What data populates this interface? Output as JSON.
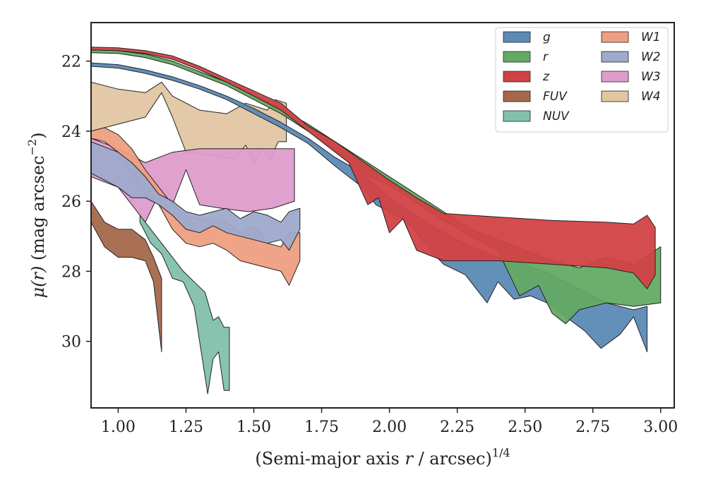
{
  "chart_data": {
    "type": "area",
    "xlabel_main": "(Semi-major axis ",
    "xlabel_var": "r",
    "xlabel_unit": " / arcsec)",
    "xlabel_exp": "1/4",
    "ylabel_main": "(mag arcsec",
    "ylabel_var": "μ(r)",
    "ylabel_exp": "−2",
    "xlim": [
      0.9,
      3.05
    ],
    "ylim": [
      31.9,
      20.9
    ],
    "y_inverted": true,
    "xticks": [
      "1.00",
      "1.25",
      "1.50",
      "1.75",
      "2.00",
      "2.25",
      "2.50",
      "2.75",
      "3.00"
    ],
    "xtick_values": [
      1.0,
      1.25,
      1.5,
      1.75,
      2.0,
      2.25,
      2.5,
      2.75,
      3.0
    ],
    "yticks": [
      "22",
      "24",
      "26",
      "28",
      "30"
    ],
    "ytick_values": [
      22,
      24,
      26,
      28,
      30
    ],
    "grid": false,
    "legend_position": "top-right",
    "series": [
      {
        "name": "W4",
        "color": "#e2c6a2",
        "upper": [
          [
            0.9,
            22.6
          ],
          [
            1.0,
            22.8
          ],
          [
            1.1,
            22.9
          ],
          [
            1.16,
            22.6
          ],
          [
            1.2,
            23.0
          ],
          [
            1.3,
            23.4
          ],
          [
            1.4,
            23.5
          ],
          [
            1.47,
            23.2
          ],
          [
            1.55,
            23.4
          ],
          [
            1.58,
            23.1
          ],
          [
            1.62,
            23.2
          ]
        ],
        "lower": [
          [
            0.9,
            24.0
          ],
          [
            1.0,
            23.8
          ],
          [
            1.1,
            23.6
          ],
          [
            1.16,
            22.9
          ],
          [
            1.2,
            23.6
          ],
          [
            1.25,
            24.6
          ],
          [
            1.35,
            24.7
          ],
          [
            1.43,
            24.8
          ],
          [
            1.47,
            24.4
          ],
          [
            1.5,
            24.9
          ],
          [
            1.53,
            24.5
          ],
          [
            1.56,
            24.8
          ],
          [
            1.59,
            24.3
          ],
          [
            1.62,
            24.3
          ]
        ]
      },
      {
        "name": "W3",
        "color": "#de9ccc",
        "upper": [
          [
            0.9,
            24.2
          ],
          [
            1.0,
            24.5
          ],
          [
            1.1,
            24.9
          ],
          [
            1.2,
            24.6
          ],
          [
            1.3,
            24.5
          ],
          [
            1.4,
            24.5
          ],
          [
            1.5,
            24.5
          ],
          [
            1.6,
            24.5
          ],
          [
            1.65,
            24.5
          ]
        ],
        "lower": [
          [
            0.9,
            25.3
          ],
          [
            1.0,
            25.6
          ],
          [
            1.05,
            26.1
          ],
          [
            1.1,
            26.6
          ],
          [
            1.15,
            25.8
          ],
          [
            1.2,
            26.1
          ],
          [
            1.25,
            25.1
          ],
          [
            1.3,
            26.1
          ],
          [
            1.38,
            26.2
          ],
          [
            1.48,
            26.3
          ],
          [
            1.57,
            26.2
          ],
          [
            1.65,
            26.0
          ]
        ]
      },
      {
        "name": "W1",
        "color": "#ee9f82",
        "upper": [
          [
            0.9,
            24.0
          ],
          [
            0.95,
            23.9
          ],
          [
            1.0,
            24.1
          ],
          [
            1.05,
            24.5
          ],
          [
            1.1,
            25.1
          ],
          [
            1.15,
            25.6
          ],
          [
            1.2,
            26.1
          ],
          [
            1.25,
            26.4
          ],
          [
            1.3,
            26.5
          ],
          [
            1.35,
            26.6
          ],
          [
            1.4,
            26.6
          ],
          [
            1.45,
            26.9
          ],
          [
            1.5,
            26.7
          ],
          [
            1.55,
            27.2
          ],
          [
            1.6,
            27.3
          ],
          [
            1.63,
            26.9
          ],
          [
            1.67,
            26.9
          ]
        ],
        "lower": [
          [
            0.9,
            24.2
          ],
          [
            0.95,
            24.3
          ],
          [
            1.0,
            24.6
          ],
          [
            1.05,
            25.2
          ],
          [
            1.1,
            25.8
          ],
          [
            1.15,
            26.1
          ],
          [
            1.2,
            26.8
          ],
          [
            1.25,
            27.2
          ],
          [
            1.3,
            27.3
          ],
          [
            1.35,
            27.2
          ],
          [
            1.4,
            27.4
          ],
          [
            1.45,
            27.7
          ],
          [
            1.5,
            27.8
          ],
          [
            1.55,
            27.9
          ],
          [
            1.6,
            28.0
          ],
          [
            1.63,
            28.4
          ],
          [
            1.67,
            27.7
          ]
        ]
      },
      {
        "name": "W2",
        "color": "#9eaacc",
        "upper": [
          [
            0.9,
            24.3
          ],
          [
            1.0,
            24.6
          ],
          [
            1.05,
            24.9
          ],
          [
            1.1,
            25.3
          ],
          [
            1.15,
            25.8
          ],
          [
            1.2,
            26.0
          ],
          [
            1.25,
            26.3
          ],
          [
            1.3,
            26.4
          ],
          [
            1.35,
            26.3
          ],
          [
            1.4,
            26.2
          ],
          [
            1.45,
            26.5
          ],
          [
            1.5,
            26.3
          ],
          [
            1.55,
            26.4
          ],
          [
            1.6,
            26.6
          ],
          [
            1.63,
            26.3
          ],
          [
            1.67,
            26.2
          ]
        ],
        "lower": [
          [
            0.9,
            25.2
          ],
          [
            1.0,
            25.6
          ],
          [
            1.05,
            25.9
          ],
          [
            1.1,
            25.9
          ],
          [
            1.15,
            26.1
          ],
          [
            1.2,
            26.4
          ],
          [
            1.25,
            26.8
          ],
          [
            1.3,
            26.9
          ],
          [
            1.35,
            26.7
          ],
          [
            1.4,
            26.9
          ],
          [
            1.45,
            27.0
          ],
          [
            1.5,
            27.1
          ],
          [
            1.55,
            27.2
          ],
          [
            1.6,
            27.1
          ],
          [
            1.63,
            27.4
          ],
          [
            1.67,
            26.8
          ]
        ]
      },
      {
        "name": "FUV",
        "color": "#a5684a",
        "upper": [
          [
            0.9,
            26.0
          ],
          [
            0.95,
            26.6
          ],
          [
            1.0,
            26.8
          ],
          [
            1.05,
            26.8
          ],
          [
            1.1,
            27.1
          ],
          [
            1.13,
            27.6
          ],
          [
            1.16,
            28.2
          ]
        ],
        "lower": [
          [
            0.9,
            26.6
          ],
          [
            0.95,
            27.3
          ],
          [
            1.0,
            27.6
          ],
          [
            1.05,
            27.6
          ],
          [
            1.1,
            27.7
          ],
          [
            1.13,
            28.3
          ],
          [
            1.16,
            30.3
          ]
        ]
      },
      {
        "name": "NUV",
        "color": "#82c0ac",
        "upper": [
          [
            1.08,
            26.4
          ],
          [
            1.12,
            26.8
          ],
          [
            1.16,
            27.2
          ],
          [
            1.2,
            27.6
          ],
          [
            1.24,
            28.0
          ],
          [
            1.28,
            28.3
          ],
          [
            1.32,
            28.6
          ],
          [
            1.35,
            29.4
          ],
          [
            1.37,
            29.3
          ],
          [
            1.39,
            29.6
          ],
          [
            1.41,
            29.6
          ]
        ],
        "lower": [
          [
            1.08,
            26.6
          ],
          [
            1.12,
            27.2
          ],
          [
            1.16,
            27.5
          ],
          [
            1.2,
            28.2
          ],
          [
            1.24,
            28.3
          ],
          [
            1.28,
            29.0
          ],
          [
            1.3,
            30.0
          ],
          [
            1.33,
            31.5
          ],
          [
            1.35,
            30.5
          ],
          [
            1.37,
            30.3
          ],
          [
            1.39,
            31.4
          ],
          [
            1.41,
            31.4
          ]
        ]
      },
      {
        "name": "g",
        "color": "#5b8ab5",
        "upper": [
          [
            0.9,
            22.05
          ],
          [
            1.0,
            22.1
          ],
          [
            1.1,
            22.25
          ],
          [
            1.2,
            22.45
          ],
          [
            1.3,
            22.7
          ],
          [
            1.4,
            23.0
          ],
          [
            1.5,
            23.35
          ],
          [
            1.6,
            23.75
          ],
          [
            1.7,
            24.2
          ],
          [
            1.8,
            24.75
          ],
          [
            1.9,
            25.2
          ],
          [
            2.0,
            25.9
          ],
          [
            2.1,
            26.4
          ],
          [
            2.2,
            26.9
          ],
          [
            2.3,
            27.3
          ],
          [
            2.4,
            27.6
          ],
          [
            2.5,
            27.8
          ],
          [
            2.6,
            28.1
          ],
          [
            2.7,
            28.5
          ],
          [
            2.8,
            28.9
          ],
          [
            2.9,
            29.1
          ],
          [
            2.95,
            29.0
          ]
        ],
        "lower": [
          [
            0.9,
            22.15
          ],
          [
            1.0,
            22.2
          ],
          [
            1.1,
            22.35
          ],
          [
            1.2,
            22.55
          ],
          [
            1.3,
            22.8
          ],
          [
            1.4,
            23.1
          ],
          [
            1.5,
            23.5
          ],
          [
            1.6,
            23.9
          ],
          [
            1.7,
            24.35
          ],
          [
            1.8,
            25.0
          ],
          [
            1.9,
            25.6
          ],
          [
            1.95,
            26.1
          ],
          [
            2.0,
            26.3
          ],
          [
            2.05,
            26.5
          ],
          [
            2.1,
            26.9
          ],
          [
            2.15,
            27.4
          ],
          [
            2.2,
            27.8
          ],
          [
            2.28,
            28.1
          ],
          [
            2.36,
            28.9
          ],
          [
            2.4,
            28.3
          ],
          [
            2.46,
            28.8
          ],
          [
            2.52,
            28.7
          ],
          [
            2.58,
            28.9
          ],
          [
            2.65,
            29.3
          ],
          [
            2.72,
            29.7
          ],
          [
            2.78,
            30.2
          ],
          [
            2.85,
            29.8
          ],
          [
            2.9,
            29.3
          ],
          [
            2.95,
            30.3
          ]
        ]
      },
      {
        "name": "r",
        "color": "#64aa64",
        "upper": [
          [
            0.9,
            21.68
          ],
          [
            1.0,
            21.7
          ],
          [
            1.1,
            21.8
          ],
          [
            1.2,
            22.0
          ],
          [
            1.3,
            22.3
          ],
          [
            1.4,
            22.6
          ],
          [
            1.5,
            22.95
          ],
          [
            1.6,
            23.35
          ],
          [
            1.7,
            23.8
          ],
          [
            1.8,
            24.3
          ],
          [
            1.9,
            24.8
          ],
          [
            2.0,
            25.3
          ],
          [
            2.1,
            25.8
          ],
          [
            2.2,
            26.3
          ],
          [
            2.3,
            26.8
          ],
          [
            2.4,
            27.1
          ],
          [
            2.5,
            27.4
          ],
          [
            2.6,
            27.7
          ],
          [
            2.7,
            27.9
          ],
          [
            2.8,
            27.6
          ],
          [
            2.9,
            27.8
          ],
          [
            3.0,
            27.3
          ]
        ],
        "lower": [
          [
            0.9,
            21.76
          ],
          [
            1.0,
            21.78
          ],
          [
            1.1,
            21.9
          ],
          [
            1.2,
            22.1
          ],
          [
            1.3,
            22.4
          ],
          [
            1.4,
            22.7
          ],
          [
            1.5,
            23.1
          ],
          [
            1.6,
            23.5
          ],
          [
            1.7,
            24.0
          ],
          [
            1.8,
            24.55
          ],
          [
            1.9,
            25.2
          ],
          [
            2.0,
            25.55
          ],
          [
            2.1,
            26.05
          ],
          [
            2.2,
            26.55
          ],
          [
            2.3,
            27.0
          ],
          [
            2.4,
            27.4
          ],
          [
            2.48,
            28.7
          ],
          [
            2.55,
            28.4
          ],
          [
            2.6,
            29.2
          ],
          [
            2.65,
            29.5
          ],
          [
            2.7,
            29.1
          ],
          [
            2.8,
            28.9
          ],
          [
            2.9,
            29.0
          ],
          [
            3.0,
            28.9
          ]
        ]
      },
      {
        "name": "z",
        "color": "#d24245",
        "upper": [
          [
            0.9,
            21.6
          ],
          [
            1.0,
            21.62
          ],
          [
            1.1,
            21.7
          ],
          [
            1.2,
            21.85
          ],
          [
            1.3,
            22.15
          ],
          [
            1.4,
            22.5
          ],
          [
            1.5,
            22.85
          ],
          [
            1.6,
            23.2
          ],
          [
            1.7,
            23.85
          ],
          [
            1.8,
            24.3
          ],
          [
            1.9,
            24.85
          ],
          [
            2.0,
            25.4
          ],
          [
            2.1,
            25.9
          ],
          [
            2.2,
            26.35
          ],
          [
            2.4,
            26.45
          ],
          [
            2.6,
            26.55
          ],
          [
            2.8,
            26.6
          ],
          [
            2.9,
            26.65
          ],
          [
            2.95,
            26.4
          ],
          [
            2.98,
            26.75
          ]
        ],
        "lower": [
          [
            0.9,
            21.68
          ],
          [
            1.0,
            21.7
          ],
          [
            1.1,
            21.78
          ],
          [
            1.2,
            21.95
          ],
          [
            1.3,
            22.25
          ],
          [
            1.4,
            22.6
          ],
          [
            1.5,
            23.0
          ],
          [
            1.6,
            23.4
          ],
          [
            1.7,
            24.0
          ],
          [
            1.8,
            24.6
          ],
          [
            1.85,
            24.9
          ],
          [
            1.92,
            26.1
          ],
          [
            1.96,
            25.9
          ],
          [
            2.0,
            26.9
          ],
          [
            2.05,
            26.5
          ],
          [
            2.1,
            27.4
          ],
          [
            2.2,
            27.7
          ],
          [
            2.4,
            27.7
          ],
          [
            2.6,
            27.8
          ],
          [
            2.8,
            27.9
          ],
          [
            2.9,
            28.05
          ],
          [
            2.95,
            28.5
          ],
          [
            2.98,
            28.1
          ]
        ]
      }
    ],
    "legend_col1": [
      {
        "name": "g",
        "color": "#5b8ab5"
      },
      {
        "name": "r",
        "color": "#64aa64"
      },
      {
        "name": "z",
        "color": "#d24245"
      },
      {
        "name": "FUV",
        "color": "#a5684a"
      },
      {
        "name": "NUV",
        "color": "#82c0ac"
      }
    ],
    "legend_col2": [
      {
        "name": "W1",
        "color": "#ee9f82"
      },
      {
        "name": "W2",
        "color": "#9eaacc"
      },
      {
        "name": "W3",
        "color": "#de9ccc"
      },
      {
        "name": "W4",
        "color": "#e2c6a2"
      }
    ]
  }
}
